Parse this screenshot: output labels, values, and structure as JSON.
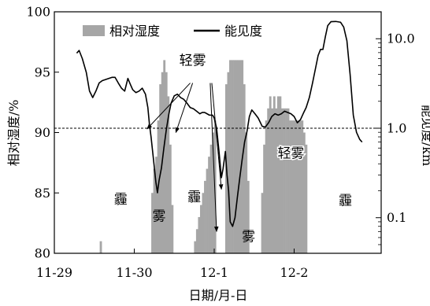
{
  "chart_data": {
    "type": "bar+line",
    "xlabel": "日期/月-日",
    "ylabel_left": "相对湿度/%",
    "ylabel_right": "能见度/km",
    "x_ticks": [
      {
        "label": "11-29",
        "x": 0
      },
      {
        "label": "11-30",
        "x": 1
      },
      {
        "label": "12-1",
        "x": 2
      },
      {
        "label": "12-2",
        "x": 3
      }
    ],
    "x_range": [
      0.28,
      3.85
    ],
    "ylim_left": [
      80,
      100
    ],
    "y_ticks_left": [
      80,
      85,
      90,
      95,
      100
    ],
    "ylim_right_log": [
      0.04,
      20
    ],
    "y_ticks_right": [
      {
        "value": 0.1,
        "label": "0.1"
      },
      {
        "value": 1.0,
        "label": "1.0"
      },
      {
        "value": 10.0,
        "label": "10.0"
      }
    ],
    "reference_line": {
      "visibility_km": 1.0,
      "style": "dashed"
    },
    "legend": [
      {
        "name": "相对湿度",
        "kind": "bar",
        "color": "#a6a6a6"
      },
      {
        "name": "能见度",
        "kind": "line",
        "color": "#000000"
      }
    ],
    "colors": {
      "bar": "#a6a6a6",
      "line": "#000000"
    },
    "humidity_bars": [
      {
        "x": 0.58,
        "value": 81
      },
      {
        "x": 1.225,
        "value": 85
      },
      {
        "x": 1.25,
        "value": 87
      },
      {
        "x": 1.275,
        "value": 88
      },
      {
        "x": 1.3,
        "value": 91
      },
      {
        "x": 1.325,
        "value": 94
      },
      {
        "x": 1.35,
        "value": 95
      },
      {
        "x": 1.375,
        "value": 96
      },
      {
        "x": 1.4,
        "value": 95
      },
      {
        "x": 1.425,
        "value": 93
      },
      {
        "x": 1.45,
        "value": 89
      },
      {
        "x": 1.475,
        "value": 84
      },
      {
        "x": 1.76,
        "value": 81
      },
      {
        "x": 1.785,
        "value": 82
      },
      {
        "x": 1.81,
        "value": 83
      },
      {
        "x": 1.835,
        "value": 84
      },
      {
        "x": 1.86,
        "value": 85
      },
      {
        "x": 1.885,
        "value": 86
      },
      {
        "x": 1.91,
        "value": 87
      },
      {
        "x": 1.935,
        "value": 88
      },
      {
        "x": 1.96,
        "value": 89
      },
      {
        "x": 1.985,
        "value": 90
      },
      {
        "x": 2.01,
        "value": 91
      },
      {
        "x": 2.15,
        "value": 94
      },
      {
        "x": 2.175,
        "value": 95
      },
      {
        "x": 2.2,
        "value": 96
      },
      {
        "x": 2.225,
        "value": 96
      },
      {
        "x": 2.25,
        "value": 96
      },
      {
        "x": 2.275,
        "value": 96
      },
      {
        "x": 2.3,
        "value": 96
      },
      {
        "x": 2.325,
        "value": 96
      },
      {
        "x": 2.35,
        "value": 96
      },
      {
        "x": 2.375,
        "value": 94
      },
      {
        "x": 2.4,
        "value": 90
      },
      {
        "x": 2.425,
        "value": 86
      },
      {
        "x": 2.6,
        "value": 85
      },
      {
        "x": 2.625,
        "value": 89
      },
      {
        "x": 2.65,
        "value": 91
      },
      {
        "x": 2.675,
        "value": 92
      },
      {
        "x": 2.7,
        "value": 93
      },
      {
        "x": 2.725,
        "value": 92
      },
      {
        "x": 2.75,
        "value": 93
      },
      {
        "x": 2.775,
        "value": 92
      },
      {
        "x": 2.8,
        "value": 93
      },
      {
        "x": 2.825,
        "value": 93
      },
      {
        "x": 2.85,
        "value": 92
      },
      {
        "x": 2.875,
        "value": 92
      },
      {
        "x": 2.9,
        "value": 92
      },
      {
        "x": 2.925,
        "value": 92
      },
      {
        "x": 2.95,
        "value": 91
      },
      {
        "x": 2.975,
        "value": 91
      },
      {
        "x": 3.0,
        "value": 91
      },
      {
        "x": 3.025,
        "value": 91
      },
      {
        "x": 3.05,
        "value": 91
      },
      {
        "x": 3.075,
        "value": 91
      },
      {
        "x": 3.1,
        "value": 91
      },
      {
        "x": 3.125,
        "value": 90
      },
      {
        "x": 3.15,
        "value": 89
      }
    ],
    "visibility_line": [
      {
        "x": 0.28,
        "y": 6.9
      },
      {
        "x": 0.31,
        "y": 7.4
      },
      {
        "x": 0.35,
        "y": 6.0
      },
      {
        "x": 0.4,
        "y": 4.2
      },
      {
        "x": 0.44,
        "y": 2.6
      },
      {
        "x": 0.48,
        "y": 2.2
      },
      {
        "x": 0.52,
        "y": 2.6
      },
      {
        "x": 0.56,
        "y": 3.2
      },
      {
        "x": 0.6,
        "y": 3.4
      },
      {
        "x": 0.64,
        "y": 3.5
      },
      {
        "x": 0.68,
        "y": 3.6
      },
      {
        "x": 0.72,
        "y": 3.7
      },
      {
        "x": 0.76,
        "y": 3.7
      },
      {
        "x": 0.8,
        "y": 3.2
      },
      {
        "x": 0.84,
        "y": 2.8
      },
      {
        "x": 0.88,
        "y": 2.6
      },
      {
        "x": 0.92,
        "y": 3.6
      },
      {
        "x": 0.95,
        "y": 3.1
      },
      {
        "x": 0.98,
        "y": 2.7
      },
      {
        "x": 1.02,
        "y": 2.5
      },
      {
        "x": 1.06,
        "y": 2.6
      },
      {
        "x": 1.1,
        "y": 2.8
      },
      {
        "x": 1.14,
        "y": 2.4
      },
      {
        "x": 1.17,
        "y": 1.7
      },
      {
        "x": 1.19,
        "y": 1.1
      },
      {
        "x": 1.21,
        "y": 0.8
      },
      {
        "x": 1.24,
        "y": 0.45
      },
      {
        "x": 1.27,
        "y": 0.25
      },
      {
        "x": 1.29,
        "y": 0.19
      },
      {
        "x": 1.31,
        "y": 0.26
      },
      {
        "x": 1.34,
        "y": 0.36
      },
      {
        "x": 1.37,
        "y": 0.6
      },
      {
        "x": 1.4,
        "y": 0.95
      },
      {
        "x": 1.43,
        "y": 1.4
      },
      {
        "x": 1.46,
        "y": 1.9
      },
      {
        "x": 1.5,
        "y": 2.3
      },
      {
        "x": 1.54,
        "y": 2.4
      },
      {
        "x": 1.58,
        "y": 2.2
      },
      {
        "x": 1.62,
        "y": 2.1
      },
      {
        "x": 1.66,
        "y": 1.9
      },
      {
        "x": 1.7,
        "y": 1.7
      },
      {
        "x": 1.74,
        "y": 1.65
      },
      {
        "x": 1.78,
        "y": 1.55
      },
      {
        "x": 1.82,
        "y": 1.45
      },
      {
        "x": 1.85,
        "y": 1.5
      },
      {
        "x": 1.88,
        "y": 1.5
      },
      {
        "x": 1.91,
        "y": 1.45
      },
      {
        "x": 1.94,
        "y": 1.4
      },
      {
        "x": 1.98,
        "y": 1.4
      },
      {
        "x": 2.0,
        "y": 1.3
      },
      {
        "x": 2.03,
        "y": 1.0
      },
      {
        "x": 2.06,
        "y": 0.55
      },
      {
        "x": 2.09,
        "y": 0.28
      },
      {
        "x": 2.11,
        "y": 0.35
      },
      {
        "x": 2.14,
        "y": 0.55
      },
      {
        "x": 2.16,
        "y": 0.3
      },
      {
        "x": 2.18,
        "y": 0.2
      },
      {
        "x": 2.2,
        "y": 0.09
      },
      {
        "x": 2.23,
        "y": 0.08
      },
      {
        "x": 2.26,
        "y": 0.1
      },
      {
        "x": 2.29,
        "y": 0.17
      },
      {
        "x": 2.32,
        "y": 0.28
      },
      {
        "x": 2.35,
        "y": 0.45
      },
      {
        "x": 2.38,
        "y": 0.7
      },
      {
        "x": 2.41,
        "y": 0.92
      },
      {
        "x": 2.44,
        "y": 1.35
      },
      {
        "x": 2.47,
        "y": 1.6
      },
      {
        "x": 2.51,
        "y": 1.45
      },
      {
        "x": 2.55,
        "y": 1.3
      },
      {
        "x": 2.6,
        "y": 1.05
      },
      {
        "x": 2.64,
        "y": 1.03
      },
      {
        "x": 2.68,
        "y": 1.15
      },
      {
        "x": 2.72,
        "y": 1.35
      },
      {
        "x": 2.76,
        "y": 1.45
      },
      {
        "x": 2.8,
        "y": 1.4
      },
      {
        "x": 2.84,
        "y": 1.45
      },
      {
        "x": 2.88,
        "y": 1.55
      },
      {
        "x": 2.92,
        "y": 1.5
      },
      {
        "x": 2.96,
        "y": 1.45
      },
      {
        "x": 3.0,
        "y": 1.35
      },
      {
        "x": 3.04,
        "y": 1.15
      },
      {
        "x": 3.08,
        "y": 1.25
      },
      {
        "x": 3.12,
        "y": 1.5
      },
      {
        "x": 3.15,
        "y": 1.7
      },
      {
        "x": 3.19,
        "y": 2.2
      },
      {
        "x": 3.23,
        "y": 3.2
      },
      {
        "x": 3.27,
        "y": 4.8
      },
      {
        "x": 3.3,
        "y": 6.5
      },
      {
        "x": 3.33,
        "y": 7.6
      },
      {
        "x": 3.36,
        "y": 7.6
      },
      {
        "x": 3.39,
        "y": 10.5
      },
      {
        "x": 3.42,
        "y": 14.0
      },
      {
        "x": 3.46,
        "y": 15.5
      },
      {
        "x": 3.52,
        "y": 15.6
      },
      {
        "x": 3.58,
        "y": 15.3
      },
      {
        "x": 3.62,
        "y": 13.5
      },
      {
        "x": 3.66,
        "y": 9.5
      },
      {
        "x": 3.7,
        "y": 4.0
      },
      {
        "x": 3.74,
        "y": 1.4
      },
      {
        "x": 3.78,
        "y": 0.9
      },
      {
        "x": 3.82,
        "y": 0.75
      },
      {
        "x": 3.85,
        "y": 0.7
      }
    ],
    "annotations": [
      {
        "text": "轻雾",
        "kind": "label",
        "x": 1.73,
        "y_rh": 96.0
      },
      {
        "text": "轻雾",
        "kind": "label",
        "x": 2.96,
        "y_rh": 88.3
      },
      {
        "text": "霾",
        "kind": "label",
        "x": 0.83,
        "y_rh": 84.5
      },
      {
        "text": "雾",
        "kind": "label",
        "x": 1.31,
        "y_rh": 83.1
      },
      {
        "text": "霾",
        "kind": "label",
        "x": 1.75,
        "y_rh": 84.7
      },
      {
        "text": "雾",
        "kind": "label",
        "x": 2.43,
        "y_rh": 81.4
      },
      {
        "text": "霾",
        "kind": "label",
        "x": 3.64,
        "y_rh": 84.4
      }
    ],
    "arrows": [
      {
        "from_x": 1.7,
        "from_rh": 94.1,
        "to_x": 1.16,
        "to_rh": 90.3
      },
      {
        "from_x": 1.73,
        "from_rh": 94.1,
        "to_x": 1.52,
        "to_rh": 90.0
      },
      {
        "from_x": 1.95,
        "from_rh": 94.1,
        "to_x": 2.03,
        "to_rh": 81.8
      },
      {
        "from_x": 1.97,
        "from_rh": 94.1,
        "to_x": 2.09,
        "to_rh": 85.3
      }
    ]
  }
}
